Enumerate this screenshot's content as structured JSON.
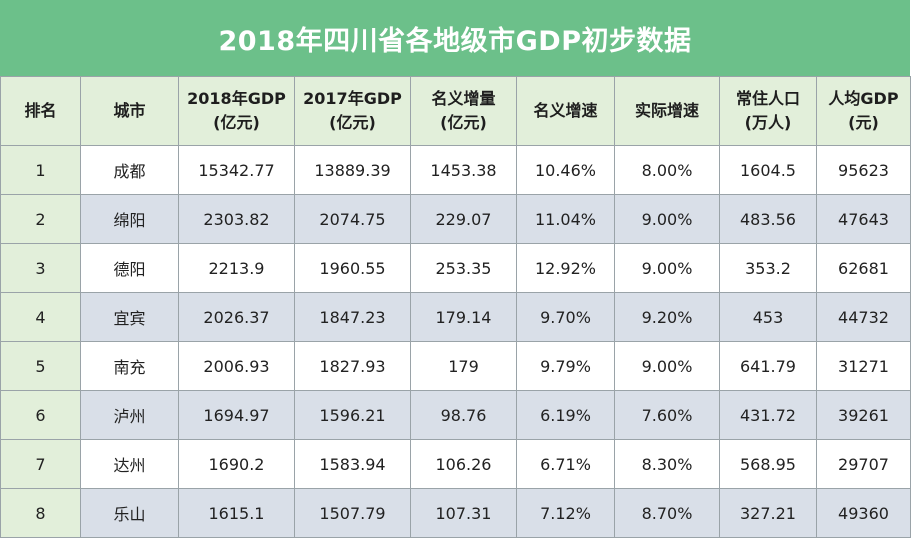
{
  "title": "2018年四川省各地级市GDP初步数据",
  "headers": [
    {
      "line1": "排名",
      "line2": ""
    },
    {
      "line1": "城市",
      "line2": ""
    },
    {
      "line1": "2018年GDP",
      "line2": "(亿元)"
    },
    {
      "line1": "2017年GDP",
      "line2": "(亿元)"
    },
    {
      "line1": "名义增量",
      "line2": "(亿元)"
    },
    {
      "line1": "名义增速",
      "line2": ""
    },
    {
      "line1": "实际增速",
      "line2": ""
    },
    {
      "line1": "常住人口",
      "line2": "(万人)"
    },
    {
      "line1": "人均GDP",
      "line2": "(元)"
    }
  ],
  "rows": [
    [
      "1",
      "成都",
      "15342.77",
      "13889.39",
      "1453.38",
      "10.46%",
      "8.00%",
      "1604.5",
      "95623"
    ],
    [
      "2",
      "绵阳",
      "2303.82",
      "2074.75",
      "229.07",
      "11.04%",
      "9.00%",
      "483.56",
      "47643"
    ],
    [
      "3",
      "德阳",
      "2213.9",
      "1960.55",
      "253.35",
      "12.92%",
      "9.00%",
      "353.2",
      "62681"
    ],
    [
      "4",
      "宜宾",
      "2026.37",
      "1847.23",
      "179.14",
      "9.70%",
      "9.20%",
      "453",
      "44732"
    ],
    [
      "5",
      "南充",
      "2006.93",
      "1827.93",
      "179",
      "9.79%",
      "9.00%",
      "641.79",
      "31271"
    ],
    [
      "6",
      "泸州",
      "1694.97",
      "1596.21",
      "98.76",
      "6.19%",
      "7.60%",
      "431.72",
      "39261"
    ],
    [
      "7",
      "达州",
      "1690.2",
      "1583.94",
      "106.26",
      "6.71%",
      "8.30%",
      "568.95",
      "29707"
    ],
    [
      "8",
      "乐山",
      "1615.1",
      "1507.79",
      "107.31",
      "7.12%",
      "8.70%",
      "327.21",
      "49360"
    ]
  ],
  "colors": {
    "title_bg": "#6cc08a",
    "header_bg": "#e2efda",
    "alt_row_bg": "#d9dfe8",
    "border": "#9aa3a8"
  }
}
